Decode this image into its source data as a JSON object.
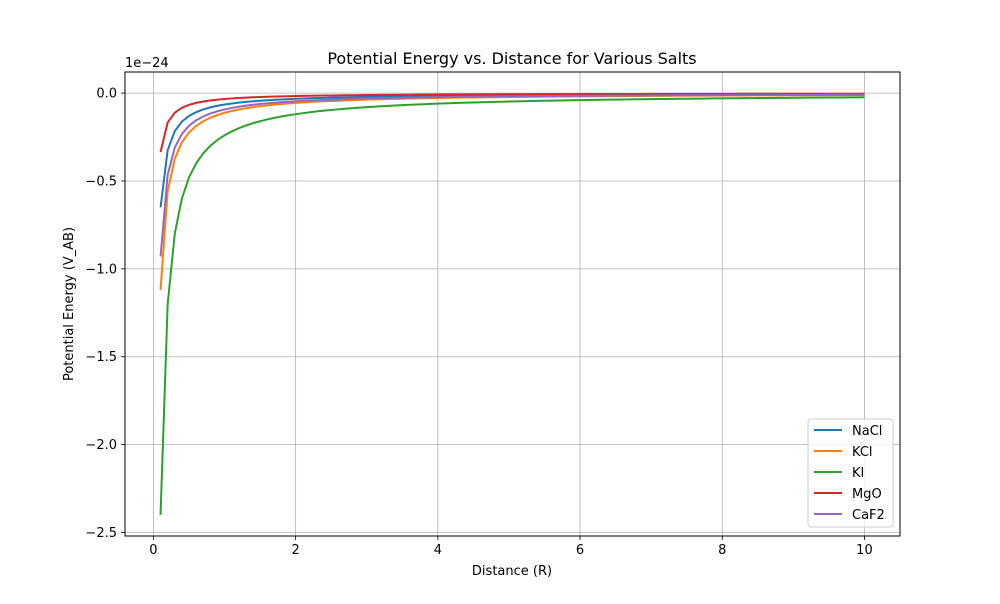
{
  "chart_data": {
    "type": "line",
    "title": "Potential Energy vs. Distance for Various Salts",
    "xlabel": "Distance (R)",
    "ylabel": "Potential Energy (V_AB)",
    "y_offset_label": "1e−24",
    "xlim": [
      -0.4,
      10.5
    ],
    "ylim": [
      -2.52,
      0.12
    ],
    "x_ticks": [
      0,
      2,
      4,
      6,
      8,
      10
    ],
    "x_tick_labels": [
      "0",
      "2",
      "4",
      "6",
      "8",
      "10"
    ],
    "y_ticks": [
      0.0,
      -0.5,
      -1.0,
      -1.5,
      -2.0,
      -2.5
    ],
    "y_tick_labels": [
      "0.0",
      "−0.5",
      "−1.0",
      "−1.5",
      "−2.0",
      "−2.5"
    ],
    "grid": true,
    "legend_position": "lower-right",
    "x_range": {
      "start": 0.1,
      "end": 10,
      "count": 100
    },
    "series": [
      {
        "name": "NaCl",
        "color": "#1f77b4",
        "coefficient": -0.065
      },
      {
        "name": "KCl",
        "color": "#ff7f0e",
        "coefficient": -0.112
      },
      {
        "name": "KI",
        "color": "#2ca02c",
        "coefficient": -0.24
      },
      {
        "name": "MgO",
        "color": "#d62728",
        "coefficient": -0.0335
      },
      {
        "name": "CaF2",
        "color": "#9467bd",
        "coefficient": -0.093
      }
    ]
  }
}
